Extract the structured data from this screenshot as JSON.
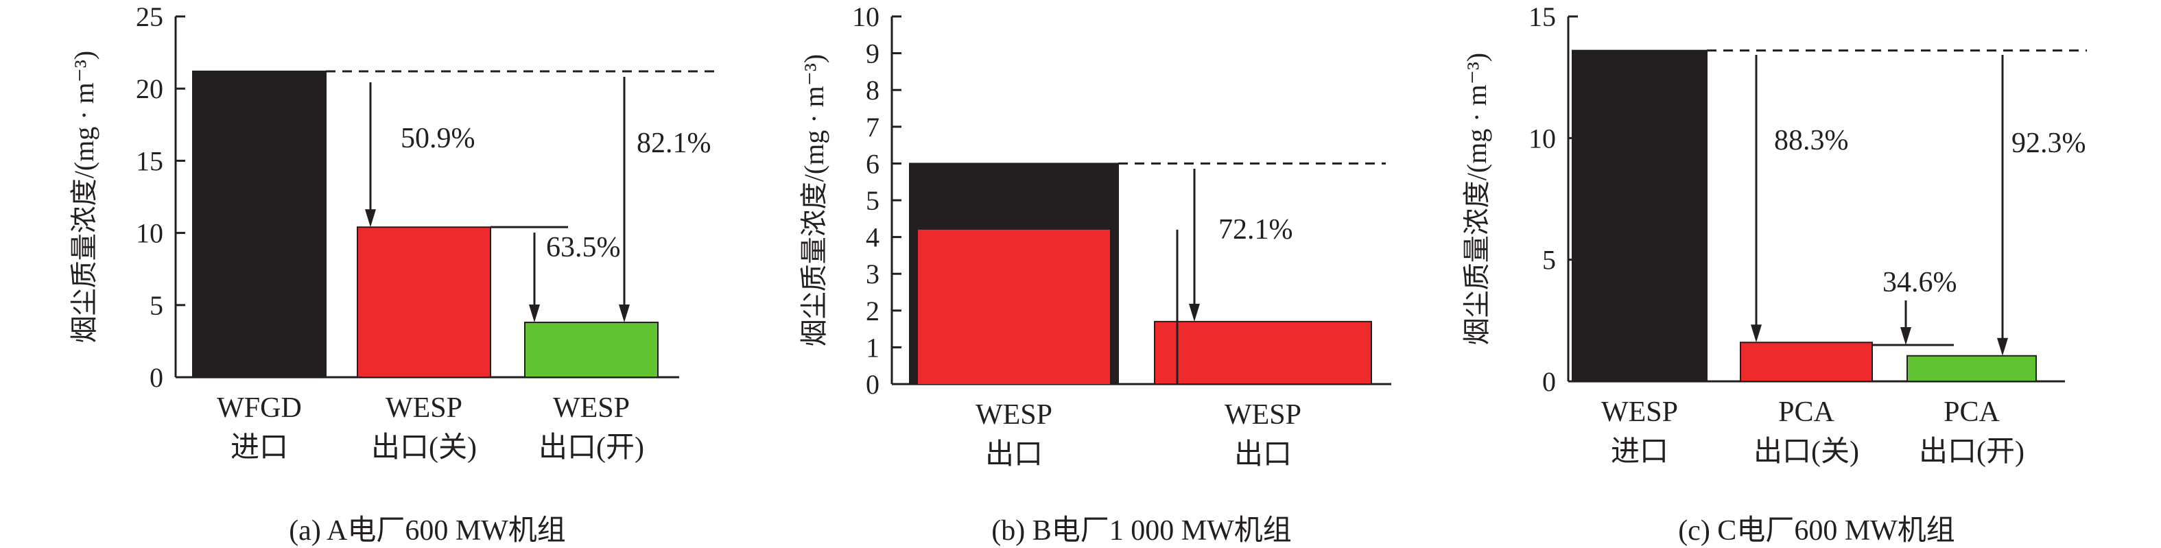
{
  "chart_data": [
    {
      "type": "bar",
      "ylabel": "烟尘质量浓度/(mg · m⁻³)",
      "ylim": [
        0,
        25
      ],
      "yticks": [
        0,
        5,
        10,
        15,
        20,
        25
      ],
      "caption": "(a) A电厂600 MW机组",
      "categories": [
        [
          "WFGD",
          "进口"
        ],
        [
          "WESP",
          "出口(关)"
        ],
        [
          "WESP",
          "出口(开)"
        ]
      ],
      "values": [
        21.2,
        10.4,
        3.8
      ],
      "bar_colors": [
        "#231f20",
        "#ee2a2c",
        "#61c232"
      ],
      "annotations": [
        "50.9%",
        "63.5%",
        "82.1%"
      ]
    },
    {
      "type": "bar",
      "ylabel": "烟尘质量浓度/(mg · m⁻³)",
      "ylim": [
        0,
        10
      ],
      "yticks": [
        0,
        1,
        2,
        3,
        4,
        5,
        6,
        7,
        8,
        9,
        10
      ],
      "caption": "(b) B电厂1 000 MW机组",
      "categories": [
        [
          "WESP",
          "出口"
        ],
        [
          "WESP",
          "出口"
        ]
      ],
      "values": [
        6.0,
        1.7
      ],
      "inner_values": [
        4.2,
        null
      ],
      "bar_colors": [
        "#231f20",
        "#ee2a2c"
      ],
      "inner_color": "#ee2a2c",
      "annotations": [
        "72.1%"
      ]
    },
    {
      "type": "bar",
      "ylabel": "烟尘质量浓度/(mg · m⁻³)",
      "ylim": [
        0,
        15
      ],
      "yticks": [
        0,
        5,
        10,
        15
      ],
      "caption": "(c) C电厂600 MW机组",
      "categories": [
        [
          "WESP",
          "进口"
        ],
        [
          "PCA",
          "出口(关)"
        ],
        [
          "PCA",
          "出口(开)"
        ]
      ],
      "values": [
        13.6,
        1.6,
        1.05
      ],
      "bar_colors": [
        "#231f20",
        "#ee2a2c",
        "#61c232"
      ],
      "annotations": [
        "88.3%",
        "34.6%",
        "92.3%"
      ]
    }
  ]
}
